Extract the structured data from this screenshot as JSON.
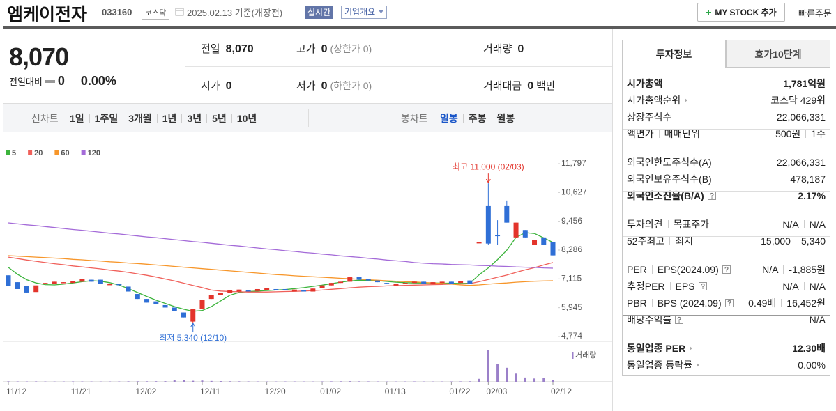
{
  "header": {
    "name": "엠케이전자",
    "code": "033160",
    "market": "코스닥",
    "date": "2025.02.13 기준(개장전)",
    "realtime": "실시간",
    "company": "기업개요",
    "my_stock": "MY STOCK 추가",
    "quick_order": "빠른주문"
  },
  "quote": {
    "price": "8,070",
    "change_label": "전일대비",
    "change": "0",
    "change_rate": "0.00%",
    "rows": [
      [
        {
          "label": "전일",
          "value": "8,070"
        },
        {
          "label": "고가",
          "value": "0",
          "note": "(상한가 0)"
        },
        {
          "label": "거래량",
          "value": "0"
        }
      ],
      [
        {
          "label": "시가",
          "value": "0"
        },
        {
          "label": "저가",
          "value": "0",
          "note": "(하한가 0)"
        },
        {
          "label": "거래대금",
          "value": "0",
          "note": "백만"
        }
      ]
    ]
  },
  "periods": {
    "line_label": "선차트",
    "line": [
      "1일",
      "1주일",
      "3개월",
      "1년",
      "3년",
      "5년",
      "10년"
    ],
    "candle_label": "봉차트",
    "candle": [
      "일봉",
      "주봉",
      "월봉"
    ],
    "active": "일봉"
  },
  "chart_data": {
    "type": "candlestick",
    "categories": [
      "11/12",
      null,
      null,
      null,
      null,
      null,
      null,
      "11/21",
      null,
      null,
      null,
      null,
      null,
      null,
      "12/02",
      null,
      null,
      null,
      null,
      null,
      null,
      "12/11",
      null,
      null,
      null,
      null,
      null,
      null,
      "12/20",
      null,
      null,
      null,
      null,
      null,
      "01/02",
      null,
      null,
      null,
      null,
      null,
      null,
      "01/13",
      null,
      null,
      null,
      null,
      null,
      null,
      "01/22",
      null,
      null,
      null,
      "02/03",
      null,
      null,
      null,
      null,
      null,
      null,
      "02/12"
    ],
    "open": [
      7260,
      6980,
      6840,
      6580,
      6900,
      6900,
      6950,
      6950,
      7000,
      7080,
      7080,
      6880,
      6900,
      6800,
      6500,
      6300,
      6200,
      6050,
      5950,
      5750,
      5380,
      5900,
      6300,
      6450,
      6550,
      6600,
      6650,
      6620,
      6650,
      6700,
      6700,
      6600,
      6650,
      6600,
      6750,
      6850,
      6950,
      7000,
      7200,
      7100,
      7050,
      6950,
      6850,
      6900,
      6950,
      7000,
      6900,
      6950,
      7000,
      6950,
      7050,
      8600,
      10100,
      8900,
      10100,
      8800,
      9100,
      8500,
      8800,
      8600
    ],
    "close": [
      6830,
      6700,
      6560,
      6850,
      6950,
      7000,
      6980,
      7020,
      7120,
      7000,
      6920,
      6900,
      6880,
      6600,
      6300,
      6150,
      6100,
      5950,
      5800,
      5550,
      5900,
      6250,
      6450,
      6550,
      6650,
      6680,
      6600,
      6700,
      6750,
      6650,
      6650,
      6680,
      6600,
      6720,
      6850,
      6950,
      7000,
      7180,
      7080,
      7050,
      6980,
      6900,
      6900,
      6950,
      7000,
      6920,
      6980,
      7000,
      6920,
      7020,
      6900,
      8600,
      8550,
      8850,
      9400,
      9400,
      8800,
      8700,
      8500,
      8070
    ],
    "high": [
      7260,
      6980,
      6840,
      6850,
      6950,
      7000,
      6980,
      7020,
      7120,
      7080,
      7080,
      6900,
      6900,
      6800,
      6500,
      6300,
      6200,
      6050,
      5950,
      5750,
      5900,
      6250,
      6450,
      6550,
      6650,
      6680,
      6650,
      6700,
      6750,
      6700,
      6700,
      6680,
      6650,
      6720,
      6850,
      6950,
      7000,
      7180,
      7200,
      7100,
      7050,
      6950,
      6900,
      6950,
      7000,
      7000,
      6980,
      7000,
      7000,
      7020,
      7050,
      8600,
      11000,
      9500,
      10300,
      9400,
      9100,
      8700,
      8800,
      8600
    ],
    "low": [
      6830,
      6700,
      6560,
      6580,
      6900,
      6900,
      6950,
      6950,
      7000,
      7000,
      6920,
      6880,
      6880,
      6600,
      6300,
      6150,
      6100,
      5950,
      5800,
      5550,
      5340,
      5900,
      6300,
      6450,
      6550,
      6600,
      6600,
      6620,
      6650,
      6650,
      6650,
      6600,
      6600,
      6600,
      6750,
      6850,
      6950,
      7000,
      7080,
      7050,
      6980,
      6900,
      6850,
      6900,
      6950,
      6920,
      6900,
      6950,
      6920,
      6950,
      6900,
      8600,
      8500,
      8500,
      9400,
      8800,
      8800,
      8500,
      8500,
      8070
    ],
    "up_color": "#e3342b",
    "down_color": "#2f6fd6",
    "series": [
      {
        "name": "5",
        "color": "#3cb43c",
        "values": [
          7580,
          7300,
          7080,
          6950,
          6880,
          6870,
          6900,
          6950,
          7000,
          7040,
          7020,
          6960,
          6860,
          6720,
          6560,
          6400,
          6250,
          6120,
          5990,
          5880,
          5800,
          5830,
          5990,
          6220,
          6450,
          6560,
          6600,
          6620,
          6640,
          6660,
          6680,
          6720,
          6760,
          6810,
          6860,
          6920,
          6980,
          7030,
          7060,
          7060,
          7040,
          7010,
          6980,
          6960,
          6950,
          6950,
          6950,
          6940,
          6940,
          6930,
          6940,
          7280,
          7560,
          7900,
          8280,
          8800,
          8990,
          8960,
          8780,
          8600
        ]
      },
      {
        "name": "20",
        "color": "#f0605a",
        "values": [
          8000,
          7940,
          7880,
          7830,
          7780,
          7730,
          7690,
          7640,
          7600,
          7560,
          7520,
          7470,
          7430,
          7380,
          7320,
          7260,
          7190,
          7110,
          7030,
          6940,
          6850,
          6760,
          6660,
          6620,
          6600,
          6590,
          6580,
          6580,
          6580,
          6590,
          6600,
          6610,
          6620,
          6640,
          6660,
          6690,
          6720,
          6750,
          6780,
          6800,
          6810,
          6830,
          6840,
          6850,
          6860,
          6870,
          6880,
          6890,
          6900,
          6910,
          6920,
          7000,
          7090,
          7180,
          7270,
          7380,
          7480,
          7570,
          7680,
          7780
        ]
      },
      {
        "name": "60",
        "color": "#f7962a",
        "values": [
          8060,
          8040,
          8020,
          8000,
          7980,
          7960,
          7940,
          7910,
          7890,
          7860,
          7840,
          7810,
          7790,
          7760,
          7740,
          7710,
          7680,
          7650,
          7620,
          7590,
          7560,
          7530,
          7500,
          7470,
          7440,
          7410,
          7380,
          7350,
          7320,
          7290,
          7270,
          7240,
          7220,
          7200,
          7180,
          7160,
          7140,
          7120,
          7100,
          7080,
          7060,
          7040,
          7020,
          7000,
          6990,
          6970,
          6950,
          6930,
          6900,
          6870,
          6850,
          6870,
          6900,
          6930,
          6950,
          6980,
          7000,
          7020,
          7030,
          7040
        ]
      },
      {
        "name": "120",
        "color": "#a46bd8",
        "values": [
          9390,
          9350,
          9310,
          9280,
          9240,
          9200,
          9160,
          9120,
          9090,
          9050,
          9010,
          8970,
          8940,
          8900,
          8860,
          8820,
          8790,
          8750,
          8710,
          8670,
          8630,
          8600,
          8560,
          8520,
          8480,
          8450,
          8410,
          8370,
          8330,
          8300,
          8260,
          8230,
          8190,
          8160,
          8120,
          8090,
          8050,
          8020,
          7990,
          7950,
          7920,
          7880,
          7850,
          7820,
          7780,
          7750,
          7730,
          7720,
          7700,
          7690,
          7680,
          7660,
          7650,
          7630,
          7620,
          7600,
          7590,
          7580,
          7560,
          7550
        ]
      }
    ],
    "volume": {
      "name": "거래량",
      "color": "#9b80c9",
      "values": [
        150000,
        120000,
        110000,
        130000,
        100000,
        90000,
        100000,
        120000,
        110000,
        100000,
        90000,
        100000,
        110000,
        140000,
        160000,
        150000,
        170000,
        180000,
        420000,
        450000,
        300000,
        380000,
        250000,
        200000,
        160000,
        140000,
        120000,
        110000,
        100000,
        90000,
        100000,
        110000,
        100000,
        90000,
        120000,
        130000,
        150000,
        180000,
        140000,
        120000,
        110000,
        100000,
        90000,
        100000,
        110000,
        100000,
        90000,
        100000,
        110000,
        120000,
        150000,
        900000,
        9800000,
        5400000,
        4300000,
        2500000,
        1300000,
        1000000,
        1200000,
        600000
      ]
    },
    "ylim": [
      4774,
      11797
    ],
    "yticks": [
      {
        "value": 11797,
        "label": "11,797"
      },
      {
        "value": 10627,
        "label": "10,627"
      },
      {
        "value": 9456,
        "label": "9,456"
      },
      {
        "value": 8286,
        "label": "8,286"
      },
      {
        "value": 7115,
        "label": "7,115"
      },
      {
        "value": 5945,
        "label": "5,945"
      },
      {
        "value": 4774,
        "label": "4,774"
      }
    ],
    "annotations": [
      {
        "label": "최고 11,000 (02/03)",
        "value": 11000,
        "color": "#e3342b"
      },
      {
        "label": "최저 5,340 (12/10)",
        "value": 5340,
        "color": "#2f6fd6"
      }
    ]
  },
  "invest": {
    "tabs": [
      "투자정보",
      "호가10단계"
    ],
    "groups": [
      [
        {
          "labels": [
            "시가총액"
          ],
          "values": [
            "1,781억원"
          ],
          "bold": true
        },
        {
          "labels": [
            "시가총액순위"
          ],
          "values": [
            "코스닥 429위"
          ],
          "link": true
        },
        {
          "labels": [
            "상장주식수"
          ],
          "values": [
            "22,066,331"
          ]
        },
        {
          "labels": [
            "액면가",
            "매매단위"
          ],
          "values": [
            "500원",
            "1주"
          ]
        }
      ],
      [
        {
          "labels": [
            "외국인한도주식수(A)"
          ],
          "values": [
            "22,066,331"
          ]
        },
        {
          "labels": [
            "외국인보유주식수(B)"
          ],
          "values": [
            "478,187"
          ]
        },
        {
          "labels": [
            "외국인소진율(B/A)"
          ],
          "values": [
            "2.17%"
          ],
          "bold": true,
          "help": true
        }
      ],
      [
        {
          "labels": [
            "투자의견",
            "목표주가"
          ],
          "values": [
            "N/A",
            "N/A"
          ]
        },
        {
          "labels": [
            "52주최고",
            "최저"
          ],
          "values": [
            "15,000",
            "5,340"
          ]
        }
      ],
      [
        {
          "labels": [
            "PER",
            "EPS(2024.09)"
          ],
          "values": [
            "N/A",
            "-1,885원"
          ],
          "help": true
        },
        {
          "labels": [
            "추정PER",
            "EPS"
          ],
          "values": [
            "N/A",
            "N/A"
          ],
          "help": true
        },
        {
          "labels": [
            "PBR",
            "BPS (2024.09)"
          ],
          "values": [
            "0.49배",
            "16,452원"
          ],
          "help": true
        },
        {
          "labels": [
            "배당수익률"
          ],
          "values": [
            "N/A"
          ],
          "help": true
        }
      ],
      [
        {
          "labels": [
            "동일업종 PER"
          ],
          "values": [
            "12.30배"
          ],
          "bold": true,
          "link": true
        },
        {
          "labels": [
            "동일업종 등락률"
          ],
          "values": [
            "0.00%"
          ],
          "link": true
        }
      ]
    ]
  }
}
